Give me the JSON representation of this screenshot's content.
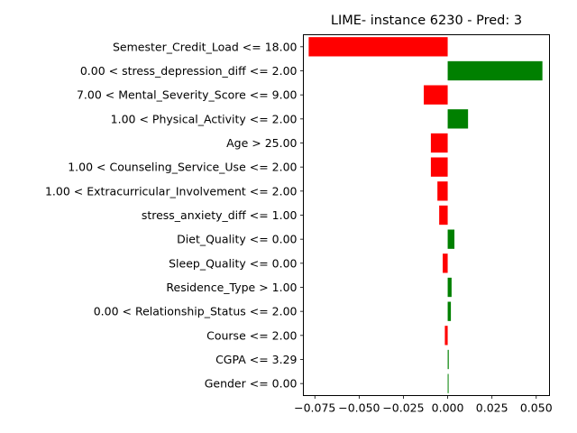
{
  "chart_data": {
    "type": "bar",
    "orientation": "horizontal",
    "title": "LIME- instance 6230 - Pred: 3",
    "xlabel": "",
    "ylabel": "",
    "xlim": [
      -0.0815,
      0.0575
    ],
    "xticks": [
      -0.075,
      -0.05,
      -0.025,
      0.0,
      0.025,
      0.05
    ],
    "xtick_labels": [
      "−0.075",
      "−0.050",
      "−0.025",
      "0.000",
      "0.025",
      "0.050"
    ],
    "grid": false,
    "legend": "none",
    "categories": [
      "Semester_Credit_Load <= 18.00",
      "0.00 < stress_depression_diff <= 2.00",
      "7.00 < Mental_Severity_Score <= 9.00",
      "1.00 < Physical_Activity <= 2.00",
      "Age > 25.00",
      "1.00 < Counseling_Service_Use <= 2.00",
      "1.00 < Extracurricular_Involvement <= 2.00",
      "stress_anxiety_diff <= 1.00",
      "Diet_Quality <= 0.00",
      "Sleep_Quality <= 0.00",
      "Residence_Type > 1.00",
      "0.00 < Relationship_Status <= 2.00",
      "Course <= 2.00",
      "CGPA <= 3.29",
      "Gender <= 0.00"
    ],
    "values": [
      -0.0785,
      0.0535,
      -0.0135,
      0.0115,
      -0.0095,
      -0.0095,
      -0.0058,
      -0.0048,
      0.0038,
      -0.0028,
      0.0022,
      0.0018,
      -0.0016,
      0.0006,
      0.0004
    ],
    "colors": {
      "positive": "#008000",
      "negative": "#ff0000"
    }
  }
}
